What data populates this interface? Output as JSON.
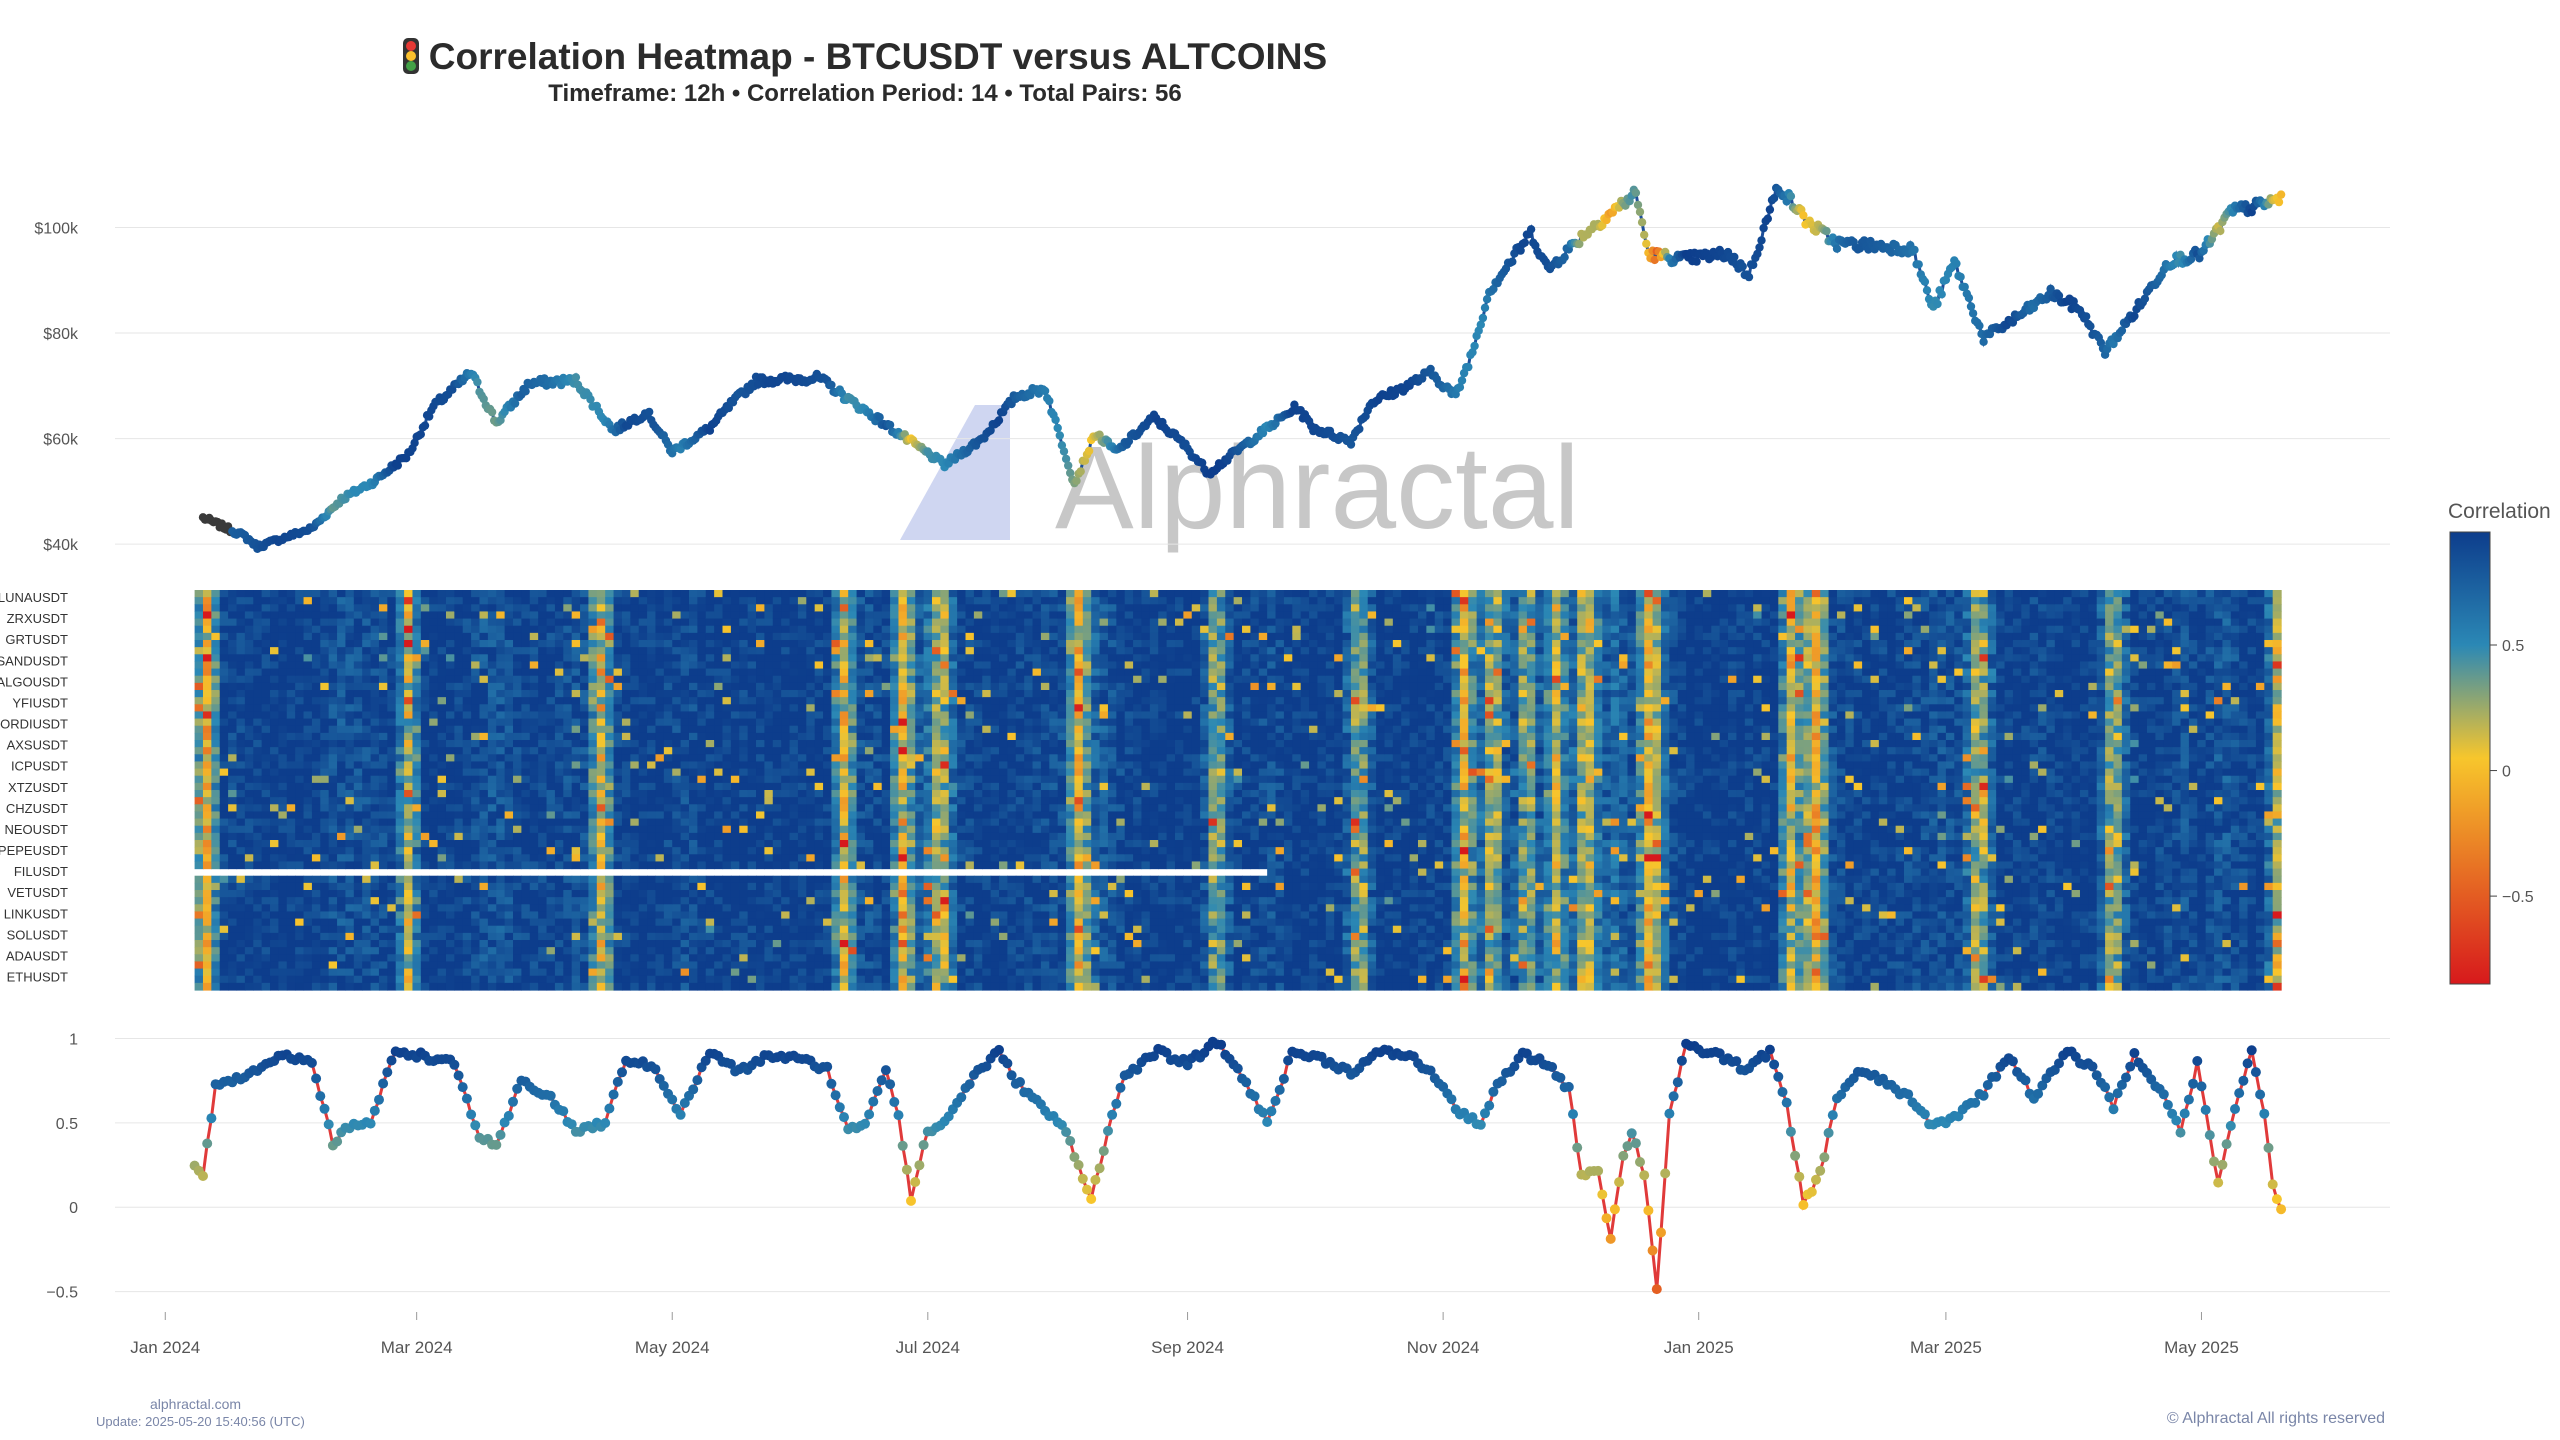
{
  "title": "Correlation Heatmap - BTCUSDT versus ALTCOINS",
  "subtitle": "Timeframe: 12h • Correlation Period: 14  • Total Pairs: 56",
  "watermark": "Alphractal",
  "footer": {
    "site": "alphractal.com",
    "update": "Update: 2025-05-20 15:40:56 (UTC)",
    "copyright": "© Alphractal All rights reserved"
  },
  "colors": {
    "line_red": "#e03a3a",
    "price_dark": "#3a3a3a",
    "scale": [
      "#d7191c",
      "#f7c62c",
      "#2b88b5",
      "#0d3d8c"
    ]
  },
  "colorbar": {
    "title": "Correlation",
    "ticks": [
      {
        "value": 0.5,
        "label": "0.5"
      },
      {
        "value": 0,
        "label": "0"
      },
      {
        "value": -0.5,
        "label": "−0.5"
      }
    ],
    "range": [
      -0.85,
      0.95
    ]
  },
  "chart_data": {
    "type": "heatmap",
    "x_axis": {
      "ticks": [
        "Jan 2024",
        "Mar 2024",
        "May 2024",
        "Jul 2024",
        "Sep 2024",
        "Nov 2024",
        "Jan 2025",
        "Mar 2025",
        "May 2025"
      ],
      "tick_dates": [
        "2024-01-01",
        "2024-03-01",
        "2024-05-01",
        "2024-07-01",
        "2024-09-01",
        "2024-11-01",
        "2025-01-01",
        "2025-03-01",
        "2025-05-01"
      ],
      "range": [
        "2023-12-20",
        "2025-06-15"
      ]
    },
    "price_panel": {
      "y_ticks": [
        {
          "value": 100000,
          "label": "$100k"
        },
        {
          "value": 80000,
          "label": "$80k"
        },
        {
          "value": 60000,
          "label": "$60k"
        },
        {
          "value": 40000,
          "label": "$40k"
        }
      ],
      "ylim": [
        37000,
        109000
      ],
      "series": [
        [
          "2024-01-10",
          45000
        ],
        [
          "2024-01-20",
          41500
        ],
        [
          "2024-01-23",
          39500
        ],
        [
          "2024-02-05",
          43000
        ],
        [
          "2024-02-12",
          48500
        ],
        [
          "2024-02-20",
          52000
        ],
        [
          "2024-02-28",
          57000
        ],
        [
          "2024-03-05",
          66000
        ],
        [
          "2024-03-14",
          72500
        ],
        [
          "2024-03-20",
          63000
        ],
        [
          "2024-03-28",
          70500
        ],
        [
          "2024-04-08",
          71000
        ],
        [
          "2024-04-17",
          61500
        ],
        [
          "2024-04-25",
          65000
        ],
        [
          "2024-05-01",
          57500
        ],
        [
          "2024-05-10",
          62000
        ],
        [
          "2024-05-15",
          66500
        ],
        [
          "2024-05-21",
          71000
        ],
        [
          "2024-06-05",
          71500
        ],
        [
          "2024-06-12",
          67500
        ],
        [
          "2024-06-24",
          61000
        ],
        [
          "2024-07-05",
          55000
        ],
        [
          "2024-07-14",
          60000
        ],
        [
          "2024-07-22",
          68000
        ],
        [
          "2024-07-29",
          69500
        ],
        [
          "2024-08-05",
          51500
        ],
        [
          "2024-08-10",
          61000
        ],
        [
          "2024-08-15",
          57500
        ],
        [
          "2024-08-24",
          64000
        ],
        [
          "2024-08-31",
          59000
        ],
        [
          "2024-09-06",
          53500
        ],
        [
          "2024-09-15",
          59000
        ],
        [
          "2024-09-27",
          66000
        ],
        [
          "2024-10-01",
          62000
        ],
        [
          "2024-10-10",
          59500
        ],
        [
          "2024-10-15",
          67000
        ],
        [
          "2024-10-21",
          69000
        ],
        [
          "2024-10-29",
          72500
        ],
        [
          "2024-11-04",
          68000
        ],
        [
          "2024-11-08",
          76500
        ],
        [
          "2024-11-12",
          88000
        ],
        [
          "2024-11-22",
          99000
        ],
        [
          "2024-11-26",
          92000
        ],
        [
          "2024-12-05",
          99000
        ],
        [
          "2024-12-17",
          106500
        ],
        [
          "2024-12-20",
          95000
        ],
        [
          "2024-12-28",
          94000
        ],
        [
          "2025-01-08",
          95000
        ],
        [
          "2025-01-13",
          91000
        ],
        [
          "2025-01-20",
          108000
        ],
        [
          "2025-01-27",
          101000
        ],
        [
          "2025-02-03",
          97000
        ],
        [
          "2025-02-13",
          96500
        ],
        [
          "2025-02-21",
          96000
        ],
        [
          "2025-02-26",
          84500
        ],
        [
          "2025-03-03",
          93500
        ],
        [
          "2025-03-10",
          79000
        ],
        [
          "2025-03-18",
          83000
        ],
        [
          "2025-03-26",
          87500
        ],
        [
          "2025-04-02",
          84500
        ],
        [
          "2025-04-08",
          76500
        ],
        [
          "2025-04-16",
          85000
        ],
        [
          "2025-04-23",
          93500
        ],
        [
          "2025-05-01",
          95000
        ],
        [
          "2025-05-08",
          103000
        ],
        [
          "2025-05-14",
          104000
        ],
        [
          "2025-05-20",
          105500
        ]
      ]
    },
    "heatmap_panel": {
      "y_labels": [
        "LUNAUSDT",
        "ZRXUSDT",
        "GRTUSDT",
        "SANDUSDT",
        "ALGOUSDT",
        "YFIUSDT",
        "ORDIUSDT",
        "AXSUSDT",
        "ICPUSDT",
        "XTZUSDT",
        "CHZUSDT",
        "NEOUSDT",
        "PEPEUSDT",
        "FILUSDT",
        "VETUSDT",
        "LINKUSDT",
        "SOLUSDT",
        "ADAUSDT",
        "ETHUSDT"
      ],
      "rows": 56,
      "start": "2024-01-08",
      "end": "2025-05-20",
      "gap": {
        "row": 39,
        "end": "2024-09-20"
      },
      "low_correlation_dates": [
        "2024-01-10",
        "2024-02-27",
        "2024-04-13",
        "2024-06-10",
        "2024-06-24",
        "2024-07-03",
        "2024-08-05",
        "2024-09-07",
        "2024-10-11",
        "2024-11-05",
        "2024-11-12",
        "2024-11-20",
        "2024-11-27",
        "2024-12-04",
        "2024-12-19",
        "2025-01-22",
        "2025-01-28",
        "2025-03-08",
        "2025-04-09",
        "2025-05-19"
      ]
    },
    "correlation_panel": {
      "y_ticks": [
        {
          "value": 1,
          "label": "1"
        },
        {
          "value": 0.5,
          "label": "0.5"
        },
        {
          "value": 0,
          "label": "0"
        },
        {
          "value": -0.5,
          "label": "−0.5"
        }
      ],
      "ylim": [
        -0.55,
        1.05
      ],
      "series": [
        [
          "2024-01-08",
          0.25
        ],
        [
          "2024-01-10",
          0.2
        ],
        [
          "2024-01-13",
          0.72
        ],
        [
          "2024-01-20",
          0.78
        ],
        [
          "2024-01-28",
          0.9
        ],
        [
          "2024-02-05",
          0.85
        ],
        [
          "2024-02-10",
          0.38
        ],
        [
          "2024-02-15",
          0.5
        ],
        [
          "2024-02-19",
          0.5
        ],
        [
          "2024-02-25",
          0.93
        ],
        [
          "2024-03-02",
          0.9
        ],
        [
          "2024-03-10",
          0.85
        ],
        [
          "2024-03-16",
          0.42
        ],
        [
          "2024-03-20",
          0.35
        ],
        [
          "2024-03-26",
          0.75
        ],
        [
          "2024-04-02",
          0.65
        ],
        [
          "2024-04-08",
          0.45
        ],
        [
          "2024-04-15",
          0.5
        ],
        [
          "2024-04-20",
          0.88
        ],
        [
          "2024-04-27",
          0.82
        ],
        [
          "2024-05-03",
          0.55
        ],
        [
          "2024-05-10",
          0.92
        ],
        [
          "2024-05-17",
          0.8
        ],
        [
          "2024-05-24",
          0.9
        ],
        [
          "2024-05-31",
          0.88
        ],
        [
          "2024-06-07",
          0.82
        ],
        [
          "2024-06-12",
          0.45
        ],
        [
          "2024-06-16",
          0.5
        ],
        [
          "2024-06-21",
          0.82
        ],
        [
          "2024-06-24",
          0.55
        ],
        [
          "2024-06-27",
          0.05
        ],
        [
          "2024-07-01",
          0.45
        ],
        [
          "2024-07-05",
          0.5
        ],
        [
          "2024-07-12",
          0.78
        ],
        [
          "2024-07-18",
          0.92
        ],
        [
          "2024-07-22",
          0.75
        ],
        [
          "2024-07-28",
          0.6
        ],
        [
          "2024-08-03",
          0.45
        ],
        [
          "2024-08-09",
          0.05
        ],
        [
          "2024-08-13",
          0.45
        ],
        [
          "2024-08-17",
          0.78
        ],
        [
          "2024-08-25",
          0.92
        ],
        [
          "2024-09-01",
          0.85
        ],
        [
          "2024-09-08",
          0.98
        ],
        [
          "2024-09-14",
          0.78
        ],
        [
          "2024-09-20",
          0.5
        ],
        [
          "2024-09-26",
          0.92
        ],
        [
          "2024-10-03",
          0.88
        ],
        [
          "2024-10-10",
          0.8
        ],
        [
          "2024-10-17",
          0.92
        ],
        [
          "2024-10-24",
          0.9
        ],
        [
          "2024-10-31",
          0.75
        ],
        [
          "2024-11-05",
          0.55
        ],
        [
          "2024-11-10",
          0.5
        ],
        [
          "2024-11-14",
          0.72
        ],
        [
          "2024-11-20",
          0.9
        ],
        [
          "2024-11-26",
          0.85
        ],
        [
          "2024-12-01",
          0.7
        ],
        [
          "2024-12-04",
          0.2
        ],
        [
          "2024-12-08",
          0.22
        ],
        [
          "2024-12-11",
          -0.18
        ],
        [
          "2024-12-14",
          0.3
        ],
        [
          "2024-12-16",
          0.45
        ],
        [
          "2024-12-19",
          0.2
        ],
        [
          "2024-12-22",
          -0.48
        ],
        [
          "2024-12-25",
          0.55
        ],
        [
          "2024-12-29",
          0.95
        ],
        [
          "2025-01-06",
          0.9
        ],
        [
          "2025-01-12",
          0.82
        ],
        [
          "2025-01-18",
          0.92
        ],
        [
          "2025-01-22",
          0.6
        ],
        [
          "2025-01-26",
          0.02
        ],
        [
          "2025-01-30",
          0.2
        ],
        [
          "2025-02-03",
          0.65
        ],
        [
          "2025-02-08",
          0.8
        ],
        [
          "2025-02-14",
          0.75
        ],
        [
          "2025-02-20",
          0.65
        ],
        [
          "2025-02-26",
          0.48
        ],
        [
          "2025-03-04",
          0.55
        ],
        [
          "2025-03-10",
          0.68
        ],
        [
          "2025-03-16",
          0.9
        ],
        [
          "2025-03-22",
          0.65
        ],
        [
          "2025-03-30",
          0.92
        ],
        [
          "2025-04-06",
          0.8
        ],
        [
          "2025-04-10",
          0.6
        ],
        [
          "2025-04-15",
          0.9
        ],
        [
          "2025-04-21",
          0.7
        ],
        [
          "2025-04-26",
          0.45
        ],
        [
          "2025-04-30",
          0.85
        ],
        [
          "2025-05-05",
          0.15
        ],
        [
          "2025-05-09",
          0.6
        ],
        [
          "2025-05-13",
          0.92
        ],
        [
          "2025-05-16",
          0.55
        ],
        [
          "2025-05-18",
          0.15
        ],
        [
          "2025-05-20",
          -0.03
        ]
      ]
    }
  }
}
